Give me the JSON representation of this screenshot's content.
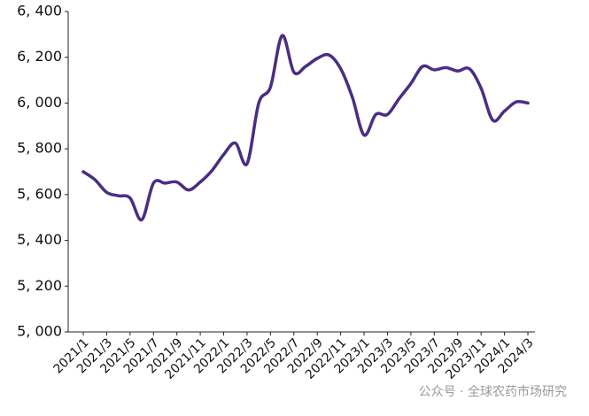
{
  "chart_data": {
    "type": "line",
    "categories": [
      "2021/1",
      null,
      "2021/3",
      null,
      "2021/5",
      null,
      "2021/7",
      null,
      "2021/9",
      null,
      "2021/11",
      null,
      "2022/1",
      null,
      "2022/3",
      null,
      "2022/5",
      null,
      "2022/7",
      null,
      "2022/9",
      null,
      "2022/11",
      null,
      "2023/1",
      null,
      "2023/3",
      null,
      "2023/5",
      null,
      "2023/7",
      null,
      "2023/9",
      null,
      "2023/11",
      null,
      "2024/1",
      null,
      "2024/3"
    ],
    "series": [
      {
        "color": "#4b2d84",
        "values": [
          5700,
          5665,
          5610,
          5595,
          5585,
          5490,
          5650,
          5650,
          5655,
          5620,
          5655,
          5705,
          5775,
          5825,
          5735,
          6000,
          6070,
          6295,
          6135,
          6160,
          6195,
          6210,
          6150,
          6025,
          5860,
          5950,
          5950,
          6020,
          6085,
          6160,
          6145,
          6155,
          6140,
          6150,
          6065,
          5925,
          5965,
          6005,
          6000
        ]
      }
    ],
    "ylim": [
      5000,
      6400
    ],
    "yticks": [
      {
        "value": 5000,
        "label": "5, 000"
      },
      {
        "value": 5200,
        "label": "5, 200"
      },
      {
        "value": 5400,
        "label": "5, 400"
      },
      {
        "value": 5600,
        "label": "5, 600"
      },
      {
        "value": 5800,
        "label": "5, 800"
      },
      {
        "value": 6000,
        "label": "6, 000"
      },
      {
        "value": 6200,
        "label": "6, 200"
      },
      {
        "value": 6400,
        "label": "6, 400"
      }
    ],
    "grid": false,
    "watermark": "公众号 · 全球农药市场研究"
  }
}
